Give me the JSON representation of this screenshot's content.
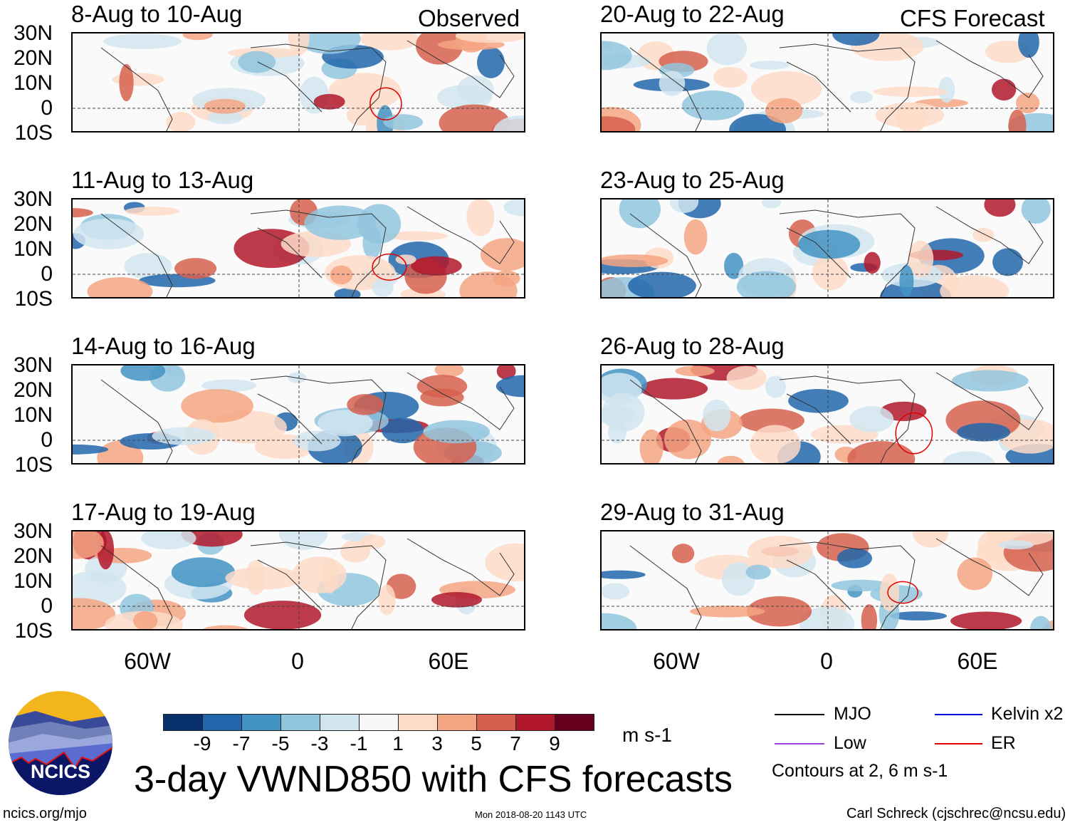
{
  "left_header": "Observed",
  "right_header": "CFS Forecast",
  "panels_left": [
    "8-Aug to 10-Aug",
    "11-Aug to 13-Aug",
    "14-Aug to 16-Aug",
    "17-Aug to 19-Aug"
  ],
  "panels_right": [
    "20-Aug to 22-Aug",
    "23-Aug to 25-Aug",
    "26-Aug to 28-Aug",
    "29-Aug to 31-Aug"
  ],
  "lat_labels": [
    "30N",
    "20N",
    "10N",
    "0",
    "10S"
  ],
  "lon_labels": [
    "60W",
    "0",
    "60E"
  ],
  "colorbar": {
    "colors": [
      "#08306b",
      "#2166ac",
      "#4393c3",
      "#92c5de",
      "#d1e5f0",
      "#f7f7f7",
      "#fddbc7",
      "#f4a582",
      "#d6604d",
      "#b2182b",
      "#67001f"
    ],
    "labels": [
      "-9",
      "-7",
      "-5",
      "-3",
      "-1",
      "1",
      "3",
      "5",
      "7",
      "9"
    ],
    "units": "m s-1"
  },
  "title": "3-day VWND850 with CFS forecasts",
  "legend": {
    "mjo": "MJO",
    "low": "Low",
    "kelvin": "Kelvin x2",
    "er": "ER",
    "colors": {
      "mjo": "#000000",
      "low": "#a040e0",
      "kelvin": "#0000e0",
      "er": "#e00000"
    },
    "contours": "Contours at 2, 6 m s-1"
  },
  "logo_text": "NCICS",
  "url": "ncics.org/mjo",
  "timestamp": "Mon 2018-08-20 1143 UTC",
  "credit": "Carl Schreck (cjschrec@ncsu.edu)"
}
